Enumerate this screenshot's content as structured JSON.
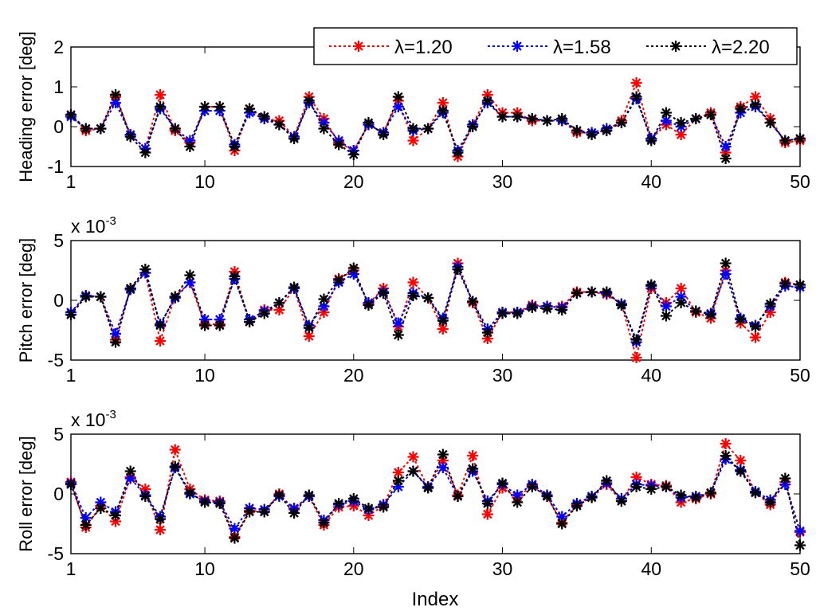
{
  "chart_data": [
    {
      "type": "line",
      "ylabel": "Heading error [deg]",
      "xlabel": "",
      "multiplier": "",
      "xlim": [
        1,
        50
      ],
      "ylim": [
        -1,
        2
      ],
      "xticks": [
        1,
        10,
        20,
        30,
        40,
        50
      ],
      "yticks": [
        -1,
        0,
        1,
        2
      ],
      "x": [
        1,
        2,
        3,
        4,
        5,
        6,
        7,
        8,
        9,
        10,
        11,
        12,
        13,
        14,
        15,
        16,
        17,
        18,
        19,
        20,
        21,
        22,
        23,
        24,
        25,
        26,
        27,
        28,
        29,
        30,
        31,
        32,
        33,
        34,
        35,
        36,
        37,
        38,
        39,
        40,
        41,
        42,
        43,
        44,
        45,
        46,
        47,
        48,
        49,
        50
      ],
      "series": [
        {
          "name": "λ=1.20",
          "color": "#ff0000",
          "values": [
            0.3,
            -0.1,
            -0.05,
            0.75,
            -0.2,
            -0.55,
            0.8,
            -0.1,
            -0.4,
            0.5,
            0.5,
            -0.6,
            0.45,
            0.2,
            0.15,
            -0.25,
            0.75,
            0.2,
            -0.4,
            -0.6,
            0.05,
            -0.15,
            0.65,
            -0.35,
            -0.05,
            0.6,
            -0.75,
            0.05,
            0.8,
            0.35,
            0.35,
            0.15,
            0.15,
            0.15,
            -0.15,
            -0.15,
            -0.1,
            0.15,
            1.1,
            -0.3,
            0.05,
            -0.2,
            0.2,
            0.35,
            -0.65,
            0.5,
            0.75,
            0.2,
            -0.4,
            -0.35
          ]
        },
        {
          "name": "λ=1.58",
          "color": "#0000ff",
          "values": [
            0.25,
            -0.05,
            -0.05,
            0.6,
            -0.2,
            -0.55,
            0.45,
            -0.05,
            -0.35,
            0.4,
            0.4,
            -0.45,
            0.35,
            0.2,
            0.05,
            -0.25,
            0.6,
            0.1,
            -0.35,
            -0.6,
            0.05,
            -0.15,
            0.5,
            -0.1,
            -0.05,
            0.35,
            -0.6,
            0.05,
            0.6,
            0.25,
            0.25,
            0.2,
            0.15,
            0.15,
            -0.1,
            -0.15,
            -0.05,
            0.1,
            0.7,
            -0.3,
            0.15,
            0.0,
            0.2,
            0.3,
            -0.5,
            0.35,
            0.5,
            0.1,
            -0.35,
            -0.3
          ]
        },
        {
          "name": "λ=2.20",
          "color": "#000000",
          "values": [
            0.3,
            -0.05,
            -0.05,
            0.8,
            -0.25,
            -0.65,
            0.5,
            -0.05,
            -0.5,
            0.5,
            0.5,
            -0.5,
            0.45,
            0.25,
            0.05,
            -0.3,
            0.65,
            -0.05,
            -0.45,
            -0.7,
            0.1,
            -0.2,
            0.75,
            -0.05,
            -0.05,
            0.4,
            -0.65,
            0.0,
            0.65,
            0.25,
            0.25,
            0.2,
            0.15,
            0.2,
            -0.1,
            -0.2,
            -0.1,
            0.1,
            0.75,
            -0.35,
            0.35,
            0.1,
            0.2,
            0.3,
            -0.8,
            0.45,
            0.55,
            0.1,
            -0.35,
            -0.3
          ]
        }
      ],
      "legend": "top-right"
    },
    {
      "type": "line",
      "ylabel": "Pitch error [deg]",
      "xlabel": "",
      "multiplier": "x 10",
      "multiplier_exp": "-3",
      "xlim": [
        1,
        50
      ],
      "ylim": [
        -5,
        5
      ],
      "xticks": [
        1,
        10,
        20,
        30,
        40,
        50
      ],
      "yticks": [
        -5,
        0,
        5
      ],
      "x": [
        1,
        2,
        3,
        4,
        5,
        6,
        7,
        8,
        9,
        10,
        11,
        12,
        13,
        14,
        15,
        16,
        17,
        18,
        19,
        20,
        21,
        22,
        23,
        24,
        25,
        26,
        27,
        28,
        29,
        30,
        31,
        32,
        33,
        34,
        35,
        36,
        37,
        38,
        39,
        40,
        41,
        42,
        43,
        44,
        45,
        46,
        47,
        48,
        49,
        50
      ],
      "series": [
        {
          "name": "λ=1.20",
          "color": "#ff0000",
          "values": [
            -1.2,
            0.4,
            0.3,
            -3.3,
            1.0,
            2.3,
            -3.4,
            0.3,
            1.5,
            -2.0,
            -2.0,
            2.4,
            -1.8,
            -0.8,
            -0.8,
            1.0,
            -3.0,
            -1.0,
            1.8,
            2.5,
            -0.3,
            1.0,
            -2.2,
            1.5,
            0.2,
            -2.4,
            3.1,
            -0.2,
            -3.2,
            -1.0,
            -1.0,
            -0.4,
            -0.5,
            -0.5,
            0.7,
            0.7,
            0.5,
            -0.3,
            -4.8,
            1.0,
            -0.2,
            1.0,
            -1.0,
            -1.5,
            2.5,
            -1.9,
            -3.1,
            -1.0,
            1.5,
            1.3
          ]
        },
        {
          "name": "λ=1.58",
          "color": "#0000ff",
          "values": [
            -1.0,
            0.4,
            0.3,
            -2.8,
            0.9,
            2.3,
            -2.0,
            0.2,
            1.5,
            -1.6,
            -1.6,
            1.8,
            -1.6,
            -0.9,
            -0.2,
            1.0,
            -2.1,
            -0.5,
            1.5,
            2.2,
            -0.2,
            0.7,
            -1.9,
            0.6,
            0.2,
            -1.5,
            2.8,
            -0.1,
            -2.4,
            -1.0,
            -1.0,
            -0.5,
            -0.5,
            -0.6,
            0.6,
            0.7,
            0.6,
            -0.3,
            -3.5,
            1.2,
            -0.5,
            0.3,
            -0.9,
            -1.1,
            2.2,
            -1.5,
            -2.1,
            -0.5,
            1.2,
            1.1
          ]
        },
        {
          "name": "λ=2.20",
          "color": "#000000",
          "values": [
            -1.2,
            0.3,
            0.3,
            -3.5,
            1.0,
            2.6,
            -2.1,
            0.3,
            2.1,
            -2.1,
            -2.1,
            2.0,
            -1.8,
            -1.1,
            -0.2,
            1.1,
            -2.3,
            0.1,
            1.7,
            2.7,
            -0.4,
            0.6,
            -2.9,
            0.4,
            0.2,
            -1.7,
            2.6,
            -0.1,
            -2.7,
            -1.1,
            -1.1,
            -0.6,
            -0.7,
            -0.8,
            0.6,
            0.7,
            0.7,
            -0.4,
            -3.3,
            1.3,
            -1.3,
            -0.2,
            -0.9,
            -1.2,
            3.1,
            -1.6,
            -2.2,
            -0.3,
            1.4,
            1.3
          ]
        }
      ]
    },
    {
      "type": "line",
      "ylabel": "Roll error [deg]",
      "xlabel": "Index",
      "multiplier": "x 10",
      "multiplier_exp": "-3",
      "xlim": [
        1,
        50
      ],
      "ylim": [
        -5,
        5
      ],
      "xticks": [
        1,
        10,
        20,
        30,
        40,
        50
      ],
      "yticks": [
        -5,
        0,
        5
      ],
      "x": [
        1,
        2,
        3,
        4,
        5,
        6,
        7,
        8,
        9,
        10,
        11,
        12,
        13,
        14,
        15,
        16,
        17,
        18,
        19,
        20,
        21,
        22,
        23,
        24,
        25,
        26,
        27,
        28,
        29,
        30,
        31,
        32,
        33,
        34,
        35,
        36,
        37,
        38,
        39,
        40,
        41,
        42,
        43,
        44,
        45,
        46,
        47,
        48,
        49,
        50
      ],
      "series": [
        {
          "name": "λ=1.20",
          "color": "#ff0000",
          "values": [
            1.0,
            -2.8,
            -1.0,
            -2.3,
            1.4,
            0.4,
            -3.0,
            3.7,
            0.4,
            -0.5,
            -0.6,
            -3.6,
            -1.4,
            -1.5,
            0.0,
            -1.3,
            -0.2,
            -2.6,
            -1.1,
            -1.0,
            -1.8,
            -1.0,
            1.8,
            3.1,
            0.5,
            2.8,
            -0.1,
            3.2,
            -1.7,
            0.5,
            -0.3,
            0.7,
            -0.2,
            -2.4,
            -0.9,
            -0.3,
            0.8,
            -0.6,
            1.4,
            0.8,
            0.7,
            -0.7,
            -0.4,
            0.0,
            4.2,
            2.8,
            0.1,
            -0.9,
            1.0,
            -3.2
          ]
        },
        {
          "name": "λ=1.58",
          "color": "#0000ff",
          "values": [
            0.9,
            -2.0,
            -0.7,
            -1.5,
            1.3,
            -0.1,
            -1.9,
            2.2,
            0.0,
            -0.6,
            -0.7,
            -2.9,
            -1.2,
            -1.3,
            -0.2,
            -1.2,
            -0.2,
            -2.2,
            -0.9,
            -0.6,
            -1.3,
            -0.9,
            0.6,
            1.9,
            0.6,
            2.2,
            -0.2,
            1.9,
            -0.6,
            0.8,
            -0.1,
            0.8,
            -0.1,
            -1.9,
            -0.8,
            -0.2,
            0.9,
            -0.4,
            0.8,
            0.7,
            0.6,
            -0.3,
            -0.2,
            0.1,
            2.9,
            2.0,
            0.2,
            -0.5,
            0.8,
            -3.1
          ]
        },
        {
          "name": "λ=2.20",
          "color": "#000000",
          "values": [
            0.8,
            -2.6,
            -1.2,
            -1.8,
            1.9,
            -0.2,
            -2.1,
            2.3,
            0.1,
            -0.7,
            -0.8,
            -3.7,
            -1.5,
            -1.5,
            -0.1,
            -1.6,
            -0.1,
            -2.4,
            -0.8,
            -0.4,
            -1.2,
            -1.1,
            1.1,
            1.9,
            0.5,
            3.3,
            -0.2,
            2.1,
            -0.8,
            0.9,
            -0.7,
            0.6,
            -0.2,
            -2.5,
            -1.0,
            -0.3,
            1.1,
            -0.6,
            0.6,
            0.4,
            0.6,
            -0.1,
            -0.3,
            0.1,
            3.2,
            1.9,
            0.1,
            -0.7,
            1.3,
            -4.3
          ]
        }
      ]
    }
  ]
}
